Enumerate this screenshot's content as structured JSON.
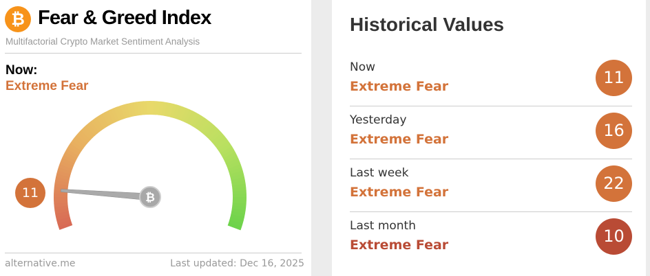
{
  "header": {
    "logo": "bitcoin-icon",
    "title": "Fear & Greed Index",
    "subtitle": "Multifactorial Crypto Market Sentiment Analysis"
  },
  "now": {
    "label": "Now:",
    "classification": "Extreme Fear",
    "value": "11",
    "value_num": 11,
    "color": "#d3733a"
  },
  "gauge": {
    "min": 0,
    "max": 100,
    "colors": [
      "#d86a55",
      "#e8b060",
      "#e8d96a",
      "#b8e060",
      "#6ad24a"
    ]
  },
  "footer": {
    "source": "alternative.me",
    "updated": "Last updated: Dec 16, 2025"
  },
  "history": {
    "title": "Historical Values",
    "rows": [
      {
        "label": "Now",
        "classification": "Extreme Fear",
        "value": "11",
        "color": "#d3733a"
      },
      {
        "label": "Yesterday",
        "classification": "Extreme Fear",
        "value": "16",
        "color": "#d3733a"
      },
      {
        "label": "Last week",
        "classification": "Extreme Fear",
        "value": "22",
        "color": "#d3733a"
      },
      {
        "label": "Last month",
        "classification": "Extreme Fear",
        "value": "10",
        "color": "#b94b35"
      }
    ]
  }
}
